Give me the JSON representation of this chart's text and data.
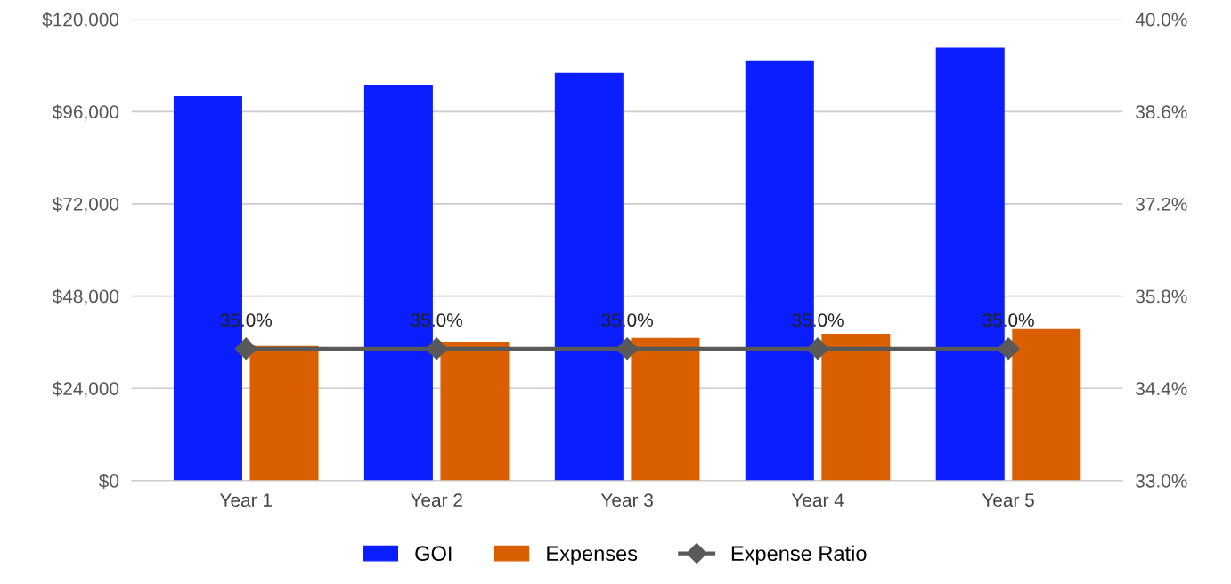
{
  "chart_data": {
    "type": "bar",
    "categories": [
      "Year 1",
      "Year 2",
      "Year 3",
      "Year 4",
      "Year 5"
    ],
    "series": [
      {
        "name": "GOI",
        "color": "#0a1eff",
        "values": [
          100000,
          103000,
          106100,
          109300,
          112600
        ]
      },
      {
        "name": "Expenses",
        "color": "#d95f00",
        "values": [
          35000,
          36100,
          37100,
          38200,
          39400
        ]
      },
      {
        "name": "Expense Ratio",
        "type": "line",
        "axis": "y2",
        "color": "#595959",
        "marker": "diamond",
        "values": [
          35.0,
          35.0,
          35.0,
          35.0,
          35.0
        ],
        "value_labels": [
          "35.0%",
          "35.0%",
          "35.0%",
          "35.0%",
          "35.0%"
        ]
      }
    ],
    "ylim": [
      0,
      120000
    ],
    "yticks": [
      {
        "value": 0,
        "label": "$0"
      },
      {
        "value": 24000,
        "label": "$24,000"
      },
      {
        "value": 48000,
        "label": "$48,000"
      },
      {
        "value": 72000,
        "label": "$72,000"
      },
      {
        "value": 96000,
        "label": "$96,000"
      },
      {
        "value": 120000,
        "label": "$120,000"
      }
    ],
    "y2lim": [
      33.0,
      40.0
    ],
    "y2ticks": [
      {
        "value": 33.0,
        "label": "33.0%"
      },
      {
        "value": 34.4,
        "label": "34.4%"
      },
      {
        "value": 35.8,
        "label": "35.8%"
      },
      {
        "value": 37.2,
        "label": "37.2%"
      },
      {
        "value": 38.6,
        "label": "38.6%"
      },
      {
        "value": 40.0,
        "label": "40.0%"
      }
    ],
    "grid": "y",
    "legend": "bottom"
  }
}
